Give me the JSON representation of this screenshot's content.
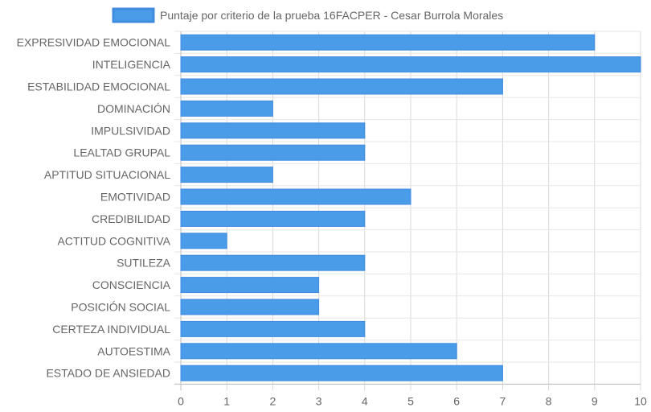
{
  "chart_data": {
    "type": "bar",
    "orientation": "horizontal",
    "title": "",
    "xlabel": "",
    "ylabel": "",
    "xlim": [
      0,
      10
    ],
    "x_ticks": [
      0,
      1,
      2,
      3,
      4,
      5,
      6,
      7,
      8,
      9,
      10
    ],
    "grid": true,
    "legend_position": "top",
    "categories": [
      "EXPRESIVIDAD EMOCIONAL",
      "INTELIGENCIA",
      "ESTABILIDAD EMOCIONAL",
      "DOMINACIÓN",
      "IMPULSIVIDAD",
      "LEALTAD GRUPAL",
      "APTITUD SITUACIONAL",
      "EMOTIVIDAD",
      "CREDIBILIDAD",
      "ACTITUD COGNITIVA",
      "SUTILEZA",
      "CONSCIENCIA",
      "POSICIÓN SOCIAL",
      "CERTEZA INDIVIDUAL",
      "AUTOESTIMA",
      "ESTADO DE ANSIEDAD"
    ],
    "series": [
      {
        "name": "Puntaje por criterio de la prueba 16FACPER - Cesar Burrola Morales",
        "values": [
          9,
          10,
          7,
          2,
          4,
          4,
          2,
          5,
          4,
          1,
          4,
          3,
          3,
          4,
          6,
          7
        ],
        "color": "#4a9be8",
        "border_color": "#3f8be0"
      }
    ]
  }
}
